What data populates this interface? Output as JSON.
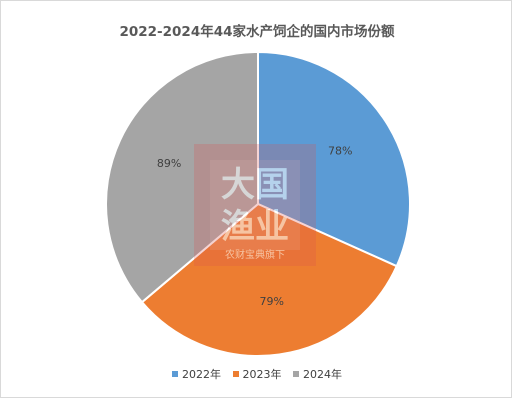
{
  "chart_data": {
    "type": "pie",
    "title": "2022-2024年44家水产饲企的国内市场份额",
    "categories": [
      "2022年",
      "2023年",
      "2024年"
    ],
    "values": [
      78,
      79,
      89
    ],
    "data_labels": [
      "78%",
      "79%",
      "89%"
    ],
    "colors": [
      "#5b9bd5",
      "#ed7d31",
      "#a5a5a5"
    ],
    "legend_position": "bottom"
  },
  "watermark": {
    "line1": "大国",
    "line2": "渔业",
    "caption": "农财宝典旗下"
  }
}
